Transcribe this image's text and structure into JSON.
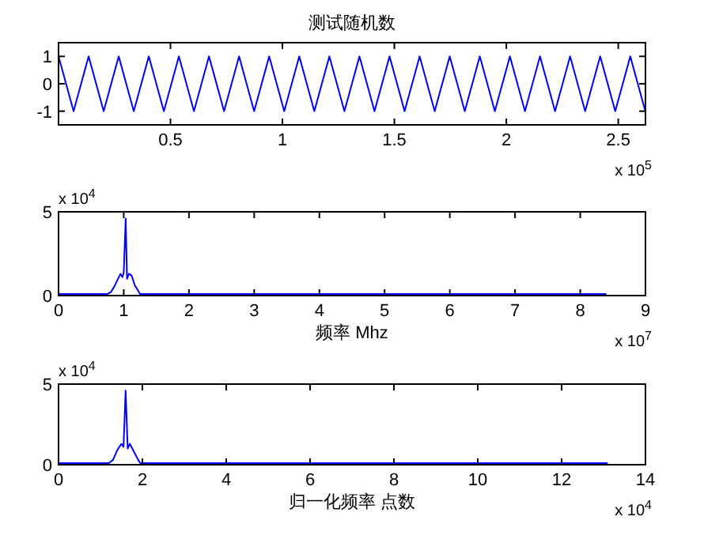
{
  "chart_data": [
    {
      "type": "line",
      "title": "测试随机数",
      "annotations": [
        "x 10$^{5}$"
      ],
      "x": [
        0,
        0.0672,
        0.1344,
        0.2016,
        0.2688,
        0.336,
        0.4032,
        0.4704,
        0.5376,
        0.6048,
        0.672,
        0.7392,
        0.8064,
        0.8736,
        0.9408,
        1.008,
        1.0752,
        1.1424,
        1.2096,
        1.2768,
        1.344,
        1.4112,
        1.4784,
        1.5456,
        1.6128,
        1.68,
        1.7472,
        1.8144,
        1.8816,
        1.9488,
        2.016,
        2.0832,
        2.1504,
        2.2176,
        2.2848,
        2.352,
        2.4192,
        2.4864,
        2.5536,
        2.6208
      ],
      "series": [
        {
          "color": "#0000ff",
          "values": [
            1,
            -1,
            1,
            -1,
            1,
            -1,
            1,
            -1,
            1,
            -1,
            1,
            -1,
            1,
            -1,
            1,
            -1,
            1,
            -1,
            1,
            -1,
            1,
            -1,
            1,
            -1,
            1,
            -1,
            1,
            -1,
            1,
            -1,
            1,
            -1,
            1,
            -1,
            1,
            -1,
            1,
            -1,
            1,
            -1
          ]
        }
      ],
      "xlim": [
        0,
        2.62144
      ],
      "xticks": [
        0.5,
        1,
        1.5,
        2,
        2.5
      ],
      "ylim": [
        -1.5,
        1.5
      ],
      "yticks": [
        -1,
        0,
        1
      ]
    },
    {
      "type": "line",
      "xlabel": "频率 Mhz",
      "annotations": [
        "x 10$^{4}$",
        "x 10$^{7}$"
      ],
      "x": [
        0,
        0.75,
        0.8,
        0.85,
        0.9,
        0.95,
        0.98,
        1.0,
        1.03,
        1.05,
        1.08,
        1.12,
        1.17,
        1.22,
        1.25,
        8.4
      ],
      "series": [
        {
          "color": "#0000ff",
          "values": [
            0.1,
            0.1,
            0.2,
            0.5,
            0.9,
            1.3,
            1.1,
            1.4,
            4.6,
            1.0,
            1.3,
            1.2,
            0.6,
            0.3,
            0.1,
            0.1
          ]
        }
      ],
      "xlim": [
        0,
        9
      ],
      "xticks": [
        0,
        1,
        2,
        3,
        4,
        5,
        6,
        7,
        8,
        9
      ],
      "ylim": [
        0,
        5
      ],
      "yticks": [
        0,
        5
      ]
    },
    {
      "type": "line",
      "xlabel": "归一化频率 点数",
      "annotations": [
        "x 10$^{4}$",
        "x 10$^{4}$"
      ],
      "x": [
        0,
        1.2,
        1.3,
        1.4,
        1.5,
        1.55,
        1.6,
        1.65,
        1.7,
        1.8,
        1.9,
        1.95,
        13.1
      ],
      "series": [
        {
          "color": "#0000ff",
          "values": [
            0.1,
            0.1,
            0.3,
            0.9,
            1.3,
            1.1,
            4.6,
            1.0,
            1.3,
            0.8,
            0.3,
            0.1,
            0.1
          ]
        }
      ],
      "xlim": [
        0,
        14
      ],
      "xticks": [
        0,
        2,
        4,
        6,
        8,
        10,
        12,
        14
      ],
      "ylim": [
        0,
        5
      ],
      "yticks": [
        0,
        5
      ]
    }
  ]
}
